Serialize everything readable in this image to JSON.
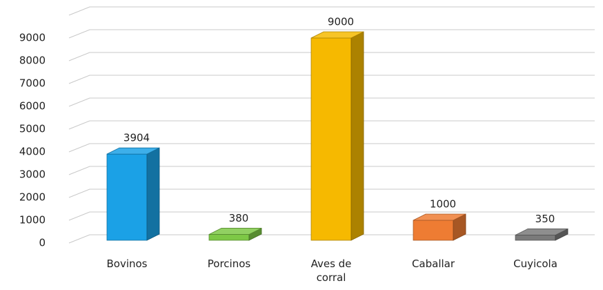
{
  "chart_data": {
    "type": "bar3d",
    "categories": [
      "Bovinos",
      "Porcinos",
      "Aves de corral",
      "Caballar",
      "Cuyicola"
    ],
    "values": [
      3904,
      380,
      9000,
      1000,
      350
    ],
    "colors": [
      "#1ba1e6",
      "#7dc846",
      "#f6b900",
      "#ee7c33",
      "#7a7a7a"
    ],
    "ylim": [
      0,
      10000
    ],
    "yticks": [
      0,
      1000,
      2000,
      3000,
      4000,
      5000,
      6000,
      7000,
      8000,
      9000
    ],
    "grid": true
  }
}
